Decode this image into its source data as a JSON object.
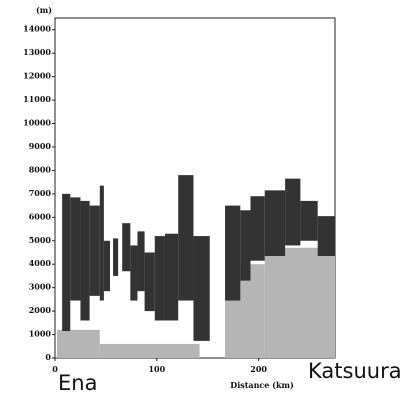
{
  "chart_data": {
    "type": "range",
    "y_unit_label": "(m)",
    "x_label": "Distance (km)",
    "annotations": [
      "Ena",
      "Katsuura"
    ],
    "xlim": [
      0,
      275
    ],
    "xticks": [
      0,
      100,
      200
    ],
    "ylim": [
      0,
      14500
    ],
    "yticks": [
      0,
      1000,
      2000,
      3000,
      4000,
      5000,
      6000,
      7000,
      8000,
      9000,
      10000,
      11000,
      12000,
      13000,
      14000
    ],
    "series": [
      {
        "color": "#b5b5b5",
        "x": [
          2,
          44,
          167,
          206
        ],
        "x_end": [
          44,
          142,
          206,
          275
        ],
        "low": [
          0,
          0,
          0,
          0
        ],
        "high": [
          1200,
          600,
          4000,
          4700
        ]
      },
      {
        "color": "#333333",
        "x": [
          7,
          15,
          25,
          34,
          44,
          48,
          57,
          66,
          74,
          81,
          88,
          98,
          108,
          121,
          136,
          167,
          182,
          192,
          206,
          226,
          241,
          258
        ],
        "x_end": [
          15,
          25,
          34,
          44,
          48,
          54,
          62,
          74,
          81,
          88,
          98,
          108,
          121,
          136,
          152,
          182,
          192,
          206,
          226,
          241,
          258,
          275
        ],
        "low": [
          1150,
          2450,
          1600,
          2650,
          2450,
          2850,
          3500,
          3700,
          2450,
          2850,
          2000,
          1600,
          1600,
          2450,
          730,
          2450,
          3300,
          4150,
          4350,
          4800,
          5000,
          4350
        ],
        "high": [
          7000,
          6850,
          6700,
          6500,
          7350,
          5000,
          5100,
          5750,
          4800,
          5400,
          4500,
          5200,
          5300,
          7800,
          5200,
          6500,
          6300,
          6900,
          7150,
          7650,
          6700,
          6050
        ]
      }
    ]
  }
}
